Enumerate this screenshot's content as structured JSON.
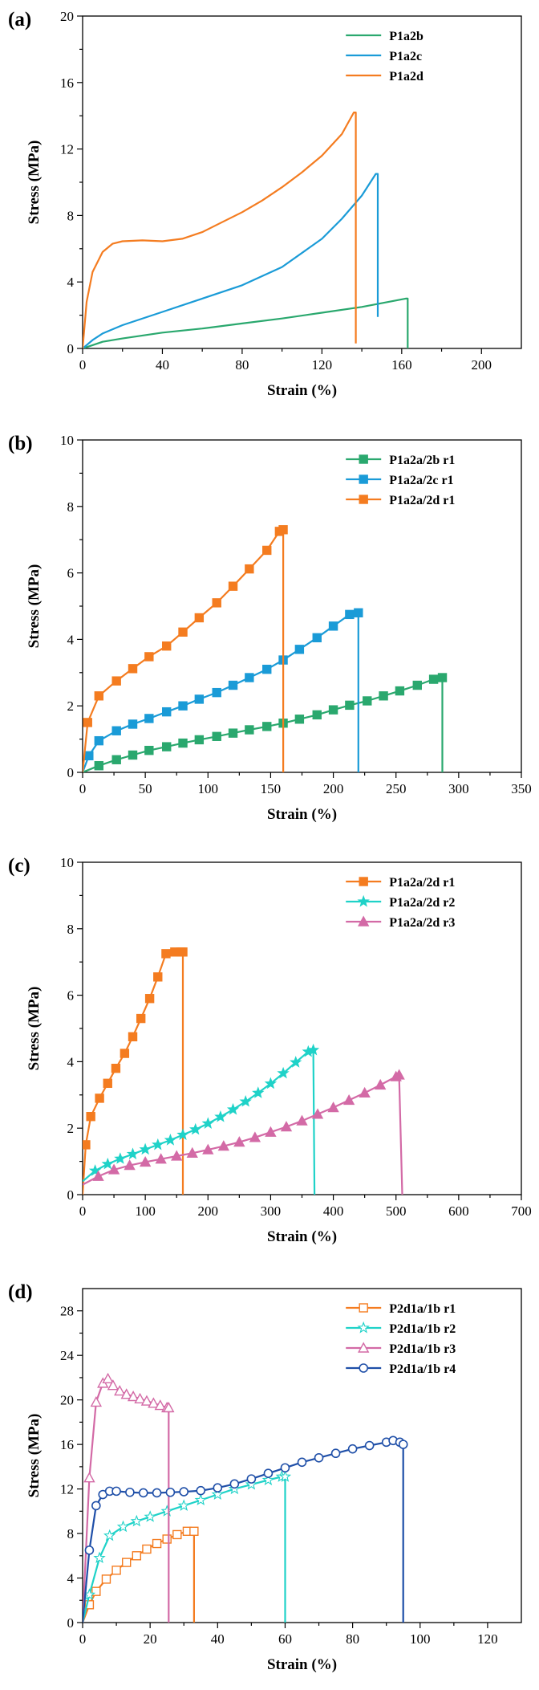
{
  "chart_data": [
    {
      "panel_label": "(a)",
      "type": "line",
      "xlabel": "Strain (%)",
      "ylabel": "Stress (MPa)",
      "xlim": [
        0,
        220
      ],
      "ylim": [
        0,
        20
      ],
      "xticks": [
        0,
        40,
        80,
        120,
        160,
        200
      ],
      "yticks": [
        0,
        4,
        8,
        12,
        16,
        20
      ],
      "legend_position": "top-right",
      "series": [
        {
          "name": "P1a2b",
          "color": "#2aa86e",
          "marker": "none",
          "x": [
            0,
            5,
            10,
            20,
            40,
            60,
            80,
            100,
            120,
            140,
            162,
            163,
            163
          ],
          "y": [
            0,
            0.2,
            0.4,
            0.6,
            0.95,
            1.2,
            1.5,
            1.8,
            2.15,
            2.5,
            3.0,
            3.0,
            0
          ]
        },
        {
          "name": "P1a2c",
          "color": "#1a9bd7",
          "marker": "none",
          "x": [
            0,
            5,
            10,
            20,
            40,
            60,
            80,
            100,
            120,
            130,
            140,
            147,
            148,
            148
          ],
          "y": [
            0,
            0.5,
            0.9,
            1.4,
            2.2,
            3.0,
            3.8,
            4.9,
            6.6,
            7.8,
            9.2,
            10.5,
            10.5,
            1.9
          ]
        },
        {
          "name": "P1a2d",
          "color": "#f47c20",
          "marker": "none",
          "x": [
            0,
            2,
            5,
            10,
            15,
            20,
            30,
            40,
            50,
            60,
            70,
            80,
            90,
            100,
            110,
            120,
            130,
            136,
            137,
            137
          ],
          "y": [
            0,
            2.8,
            4.6,
            5.8,
            6.3,
            6.45,
            6.5,
            6.45,
            6.6,
            7.0,
            7.6,
            8.2,
            8.9,
            9.7,
            10.6,
            11.6,
            12.9,
            14.2,
            14.2,
            0.3
          ]
        }
      ]
    },
    {
      "panel_label": "(b)",
      "type": "line",
      "xlabel": "Strain (%)",
      "ylabel": "Stress (MPa)",
      "xlim": [
        0,
        350
      ],
      "ylim": [
        0,
        10
      ],
      "xticks": [
        0,
        50,
        100,
        150,
        200,
        250,
        300,
        350
      ],
      "yticks": [
        0,
        2,
        4,
        6,
        8,
        10
      ],
      "legend_position": "top-right",
      "series": [
        {
          "name": "P1a2a/2b r1",
          "color": "#2aa86e",
          "marker": "square",
          "x": [
            0,
            13,
            27,
            40,
            53,
            67,
            80,
            93,
            107,
            120,
            133,
            147,
            160,
            173,
            187,
            200,
            213,
            227,
            240,
            253,
            267,
            280,
            287,
            287
          ],
          "y": [
            0,
            0.2,
            0.38,
            0.52,
            0.66,
            0.77,
            0.88,
            0.98,
            1.08,
            1.18,
            1.28,
            1.38,
            1.48,
            1.6,
            1.73,
            1.88,
            2.02,
            2.15,
            2.3,
            2.45,
            2.62,
            2.8,
            2.85,
            0
          ]
        },
        {
          "name": "P1a2a/2c r1",
          "color": "#1a9bd7",
          "marker": "square",
          "x": [
            0,
            5,
            13,
            27,
            40,
            53,
            67,
            80,
            93,
            107,
            120,
            133,
            147,
            160,
            173,
            187,
            200,
            213,
            220,
            220
          ],
          "y": [
            0,
            0.5,
            0.95,
            1.25,
            1.45,
            1.62,
            1.82,
            2.0,
            2.2,
            2.4,
            2.62,
            2.85,
            3.1,
            3.38,
            3.7,
            4.05,
            4.4,
            4.75,
            4.8,
            0
          ]
        },
        {
          "name": "P1a2a/2d r1",
          "color": "#f47c20",
          "marker": "square",
          "x": [
            0,
            4,
            13,
            27,
            40,
            53,
            67,
            80,
            93,
            107,
            120,
            133,
            147,
            157,
            160,
            160
          ],
          "y": [
            0,
            1.5,
            2.3,
            2.75,
            3.12,
            3.48,
            3.8,
            4.22,
            4.65,
            5.1,
            5.6,
            6.12,
            6.68,
            7.25,
            7.3,
            0
          ]
        }
      ]
    },
    {
      "panel_label": "(c)",
      "type": "line",
      "xlabel": "Strain (%)",
      "ylabel": "Stress (MPa)",
      "xlim": [
        0,
        700
      ],
      "ylim": [
        0,
        10
      ],
      "xticks": [
        0,
        100,
        200,
        300,
        400,
        500,
        600,
        700
      ],
      "yticks": [
        0,
        2,
        4,
        6,
        8,
        10
      ],
      "legend_position": "top-right",
      "series": [
        {
          "name": "P1a2a/2d r1",
          "color": "#f47c20",
          "marker": "square",
          "x": [
            0,
            5,
            13,
            27,
            40,
            53,
            67,
            80,
            93,
            107,
            120,
            133,
            147,
            157,
            160,
            160
          ],
          "y": [
            0,
            1.5,
            2.35,
            2.9,
            3.35,
            3.8,
            4.25,
            4.75,
            5.3,
            5.9,
            6.55,
            7.25,
            7.3,
            7.3,
            7.3,
            0
          ]
        },
        {
          "name": "P1a2a/2d r2",
          "color": "#1fd2c8",
          "marker": "star",
          "x": [
            0,
            20,
            40,
            60,
            80,
            100,
            120,
            140,
            160,
            180,
            200,
            220,
            240,
            260,
            280,
            300,
            320,
            340,
            360,
            368,
            370
          ],
          "y": [
            0.4,
            0.72,
            0.92,
            1.08,
            1.22,
            1.36,
            1.5,
            1.64,
            1.8,
            1.96,
            2.14,
            2.34,
            2.56,
            2.8,
            3.06,
            3.34,
            3.65,
            3.98,
            4.3,
            4.35,
            0
          ]
        },
        {
          "name": "P1a2a/2d r3",
          "color": "#d36aa6",
          "marker": "triangle",
          "x": [
            0,
            25,
            50,
            75,
            100,
            125,
            150,
            175,
            200,
            225,
            250,
            275,
            300,
            325,
            350,
            375,
            400,
            425,
            450,
            475,
            500,
            505,
            510
          ],
          "y": [
            0.3,
            0.55,
            0.75,
            0.88,
            0.98,
            1.07,
            1.16,
            1.25,
            1.35,
            1.46,
            1.58,
            1.72,
            1.88,
            2.04,
            2.22,
            2.42,
            2.62,
            2.84,
            3.06,
            3.3,
            3.55,
            3.6,
            0
          ]
        }
      ]
    },
    {
      "panel_label": "(d)",
      "type": "line",
      "xlabel": "Strain (%)",
      "ylabel": "Stress (MPa)",
      "xlim": [
        0,
        130
      ],
      "ylim": [
        0,
        30
      ],
      "xticks": [
        0,
        20,
        40,
        60,
        80,
        100,
        120
      ],
      "yticks": [
        0,
        4,
        8,
        12,
        16,
        20,
        24,
        28
      ],
      "legend_position": "top-right",
      "series": [
        {
          "name": "P2d1a/1b r1",
          "color": "#f47c20",
          "marker": "open-square",
          "x": [
            0,
            2,
            4,
            7,
            10,
            13,
            16,
            19,
            22,
            25,
            28,
            31,
            33,
            33
          ],
          "y": [
            0,
            1.6,
            2.8,
            3.9,
            4.7,
            5.4,
            6.0,
            6.6,
            7.1,
            7.5,
            7.9,
            8.2,
            8.2,
            0
          ]
        },
        {
          "name": "P2d1a/1b r2",
          "color": "#1fd2c8",
          "marker": "open-star",
          "x": [
            0,
            2,
            5,
            8,
            12,
            16,
            20,
            25,
            30,
            35,
            40,
            45,
            50,
            55,
            59,
            60,
            60
          ],
          "y": [
            0,
            2.5,
            5.8,
            7.8,
            8.6,
            9.1,
            9.5,
            10.0,
            10.5,
            11.0,
            11.5,
            12.0,
            12.4,
            12.8,
            13.1,
            13.1,
            0
          ]
        },
        {
          "name": "P2d1a/1b r3",
          "color": "#d36aa6",
          "marker": "open-triangle",
          "x": [
            0,
            2,
            4,
            6,
            7.5,
            9,
            11,
            13,
            15,
            17,
            19,
            21,
            23,
            25,
            25.5,
            25.5
          ],
          "y": [
            0,
            13.0,
            19.8,
            21.5,
            21.9,
            21.3,
            20.8,
            20.5,
            20.3,
            20.1,
            19.9,
            19.7,
            19.5,
            19.3,
            19.3,
            0
          ]
        },
        {
          "name": "P2d1a/1b r4",
          "color": "#1f4fa8",
          "marker": "open-circle",
          "x": [
            0,
            2,
            4,
            6,
            8,
            10,
            14,
            18,
            22,
            26,
            30,
            35,
            40,
            45,
            50,
            55,
            60,
            65,
            70,
            75,
            80,
            85,
            90,
            92,
            94,
            95,
            95
          ],
          "y": [
            0,
            6.5,
            10.5,
            11.5,
            11.8,
            11.8,
            11.7,
            11.65,
            11.65,
            11.7,
            11.75,
            11.85,
            12.1,
            12.45,
            12.9,
            13.4,
            13.9,
            14.4,
            14.8,
            15.2,
            15.6,
            15.9,
            16.2,
            16.35,
            16.2,
            16.0,
            0
          ]
        }
      ]
    }
  ]
}
